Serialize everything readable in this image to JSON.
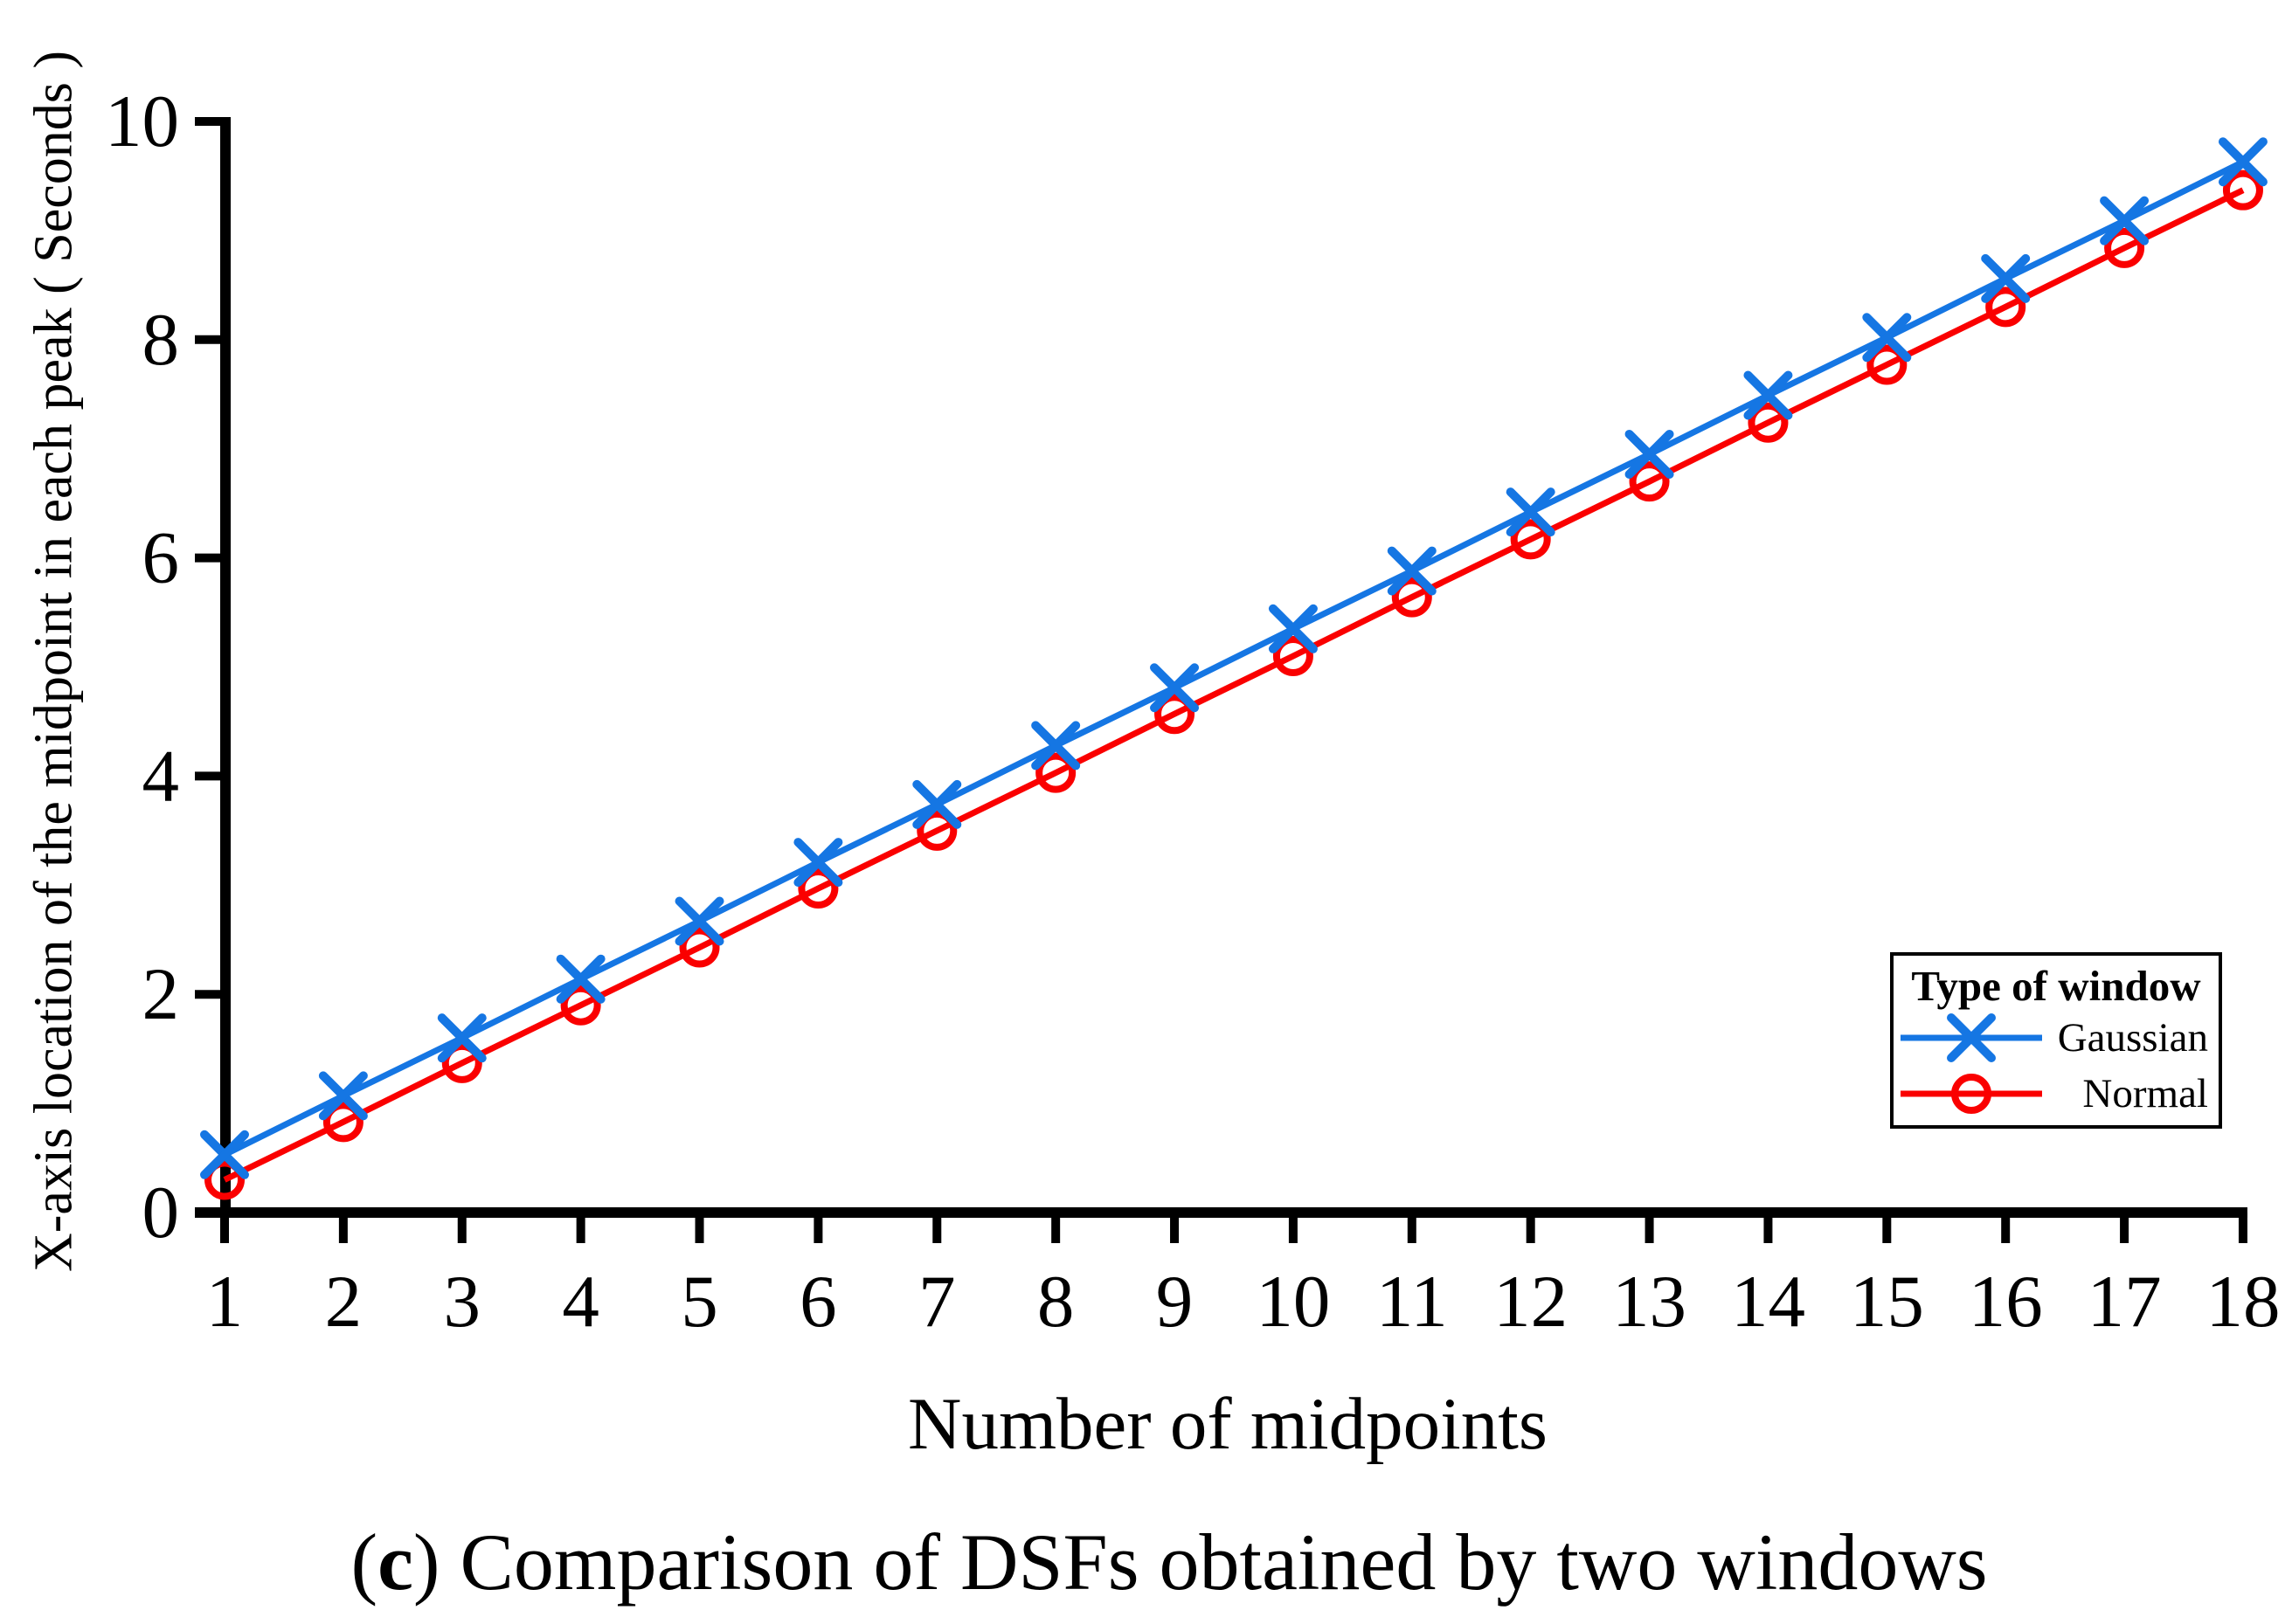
{
  "chart_data": {
    "type": "line",
    "title": "",
    "xlabel": "Number of midpoints",
    "ylabel": "X-axis location of the midpoint in each peak ( Seconds )",
    "caption": "(c) Comparison of DSFs obtained by two windows",
    "caption_parts": {
      "open": "(",
      "bold": "c",
      "rest": ") Comparison of DSFs obtained by two windows"
    },
    "x": [
      1,
      2,
      3,
      4,
      5,
      6,
      7,
      8,
      9,
      10,
      11,
      12,
      13,
      14,
      15,
      16,
      17,
      18
    ],
    "xticks": [
      1,
      2,
      3,
      4,
      5,
      6,
      7,
      8,
      9,
      10,
      11,
      12,
      13,
      14,
      15,
      16,
      17,
      18
    ],
    "yticks": [
      0,
      2,
      4,
      6,
      8,
      10
    ],
    "xlim": [
      1,
      18
    ],
    "ylim": [
      0,
      10
    ],
    "grid": false,
    "axis_color": "#000000",
    "legend": {
      "title": "Type of window",
      "position": "inside-right"
    },
    "series": [
      {
        "name": "Gaussian",
        "color": "#1576E3",
        "marker": "x",
        "values": [
          0.53,
          1.07,
          1.6,
          2.14,
          2.67,
          3.21,
          3.74,
          4.28,
          4.81,
          5.35,
          5.88,
          6.42,
          6.95,
          7.49,
          8.02,
          8.56,
          9.09,
          9.63
        ]
      },
      {
        "name": "Normal",
        "color": "#FA0000",
        "marker": "o",
        "values": [
          0.3,
          0.83,
          1.37,
          1.9,
          2.43,
          2.97,
          3.5,
          4.03,
          4.57,
          5.1,
          5.64,
          6.17,
          6.7,
          7.24,
          7.77,
          8.3,
          8.84,
          9.37
        ]
      }
    ]
  }
}
